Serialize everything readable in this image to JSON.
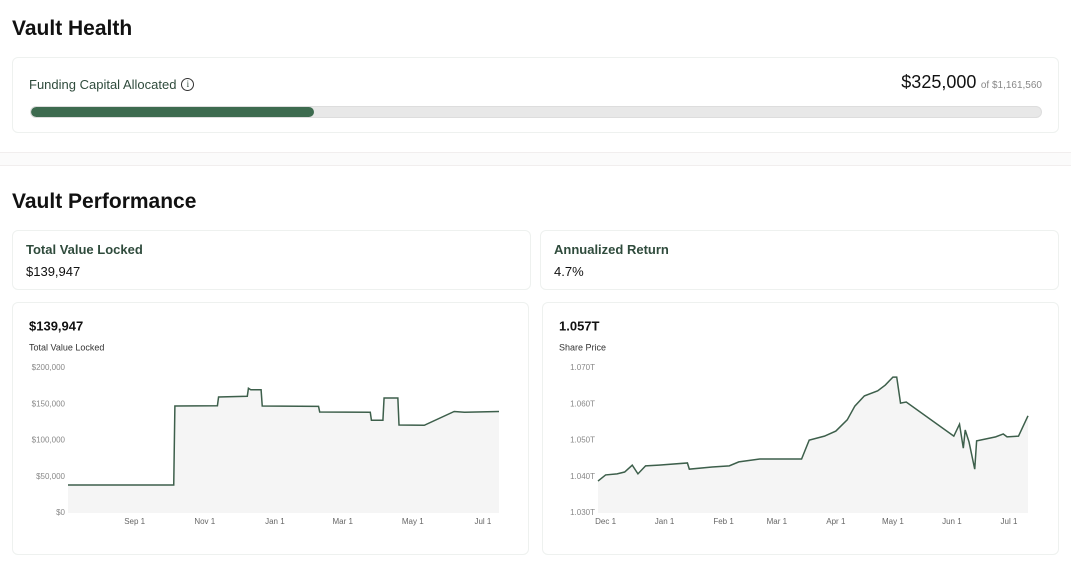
{
  "health": {
    "title": "Vault Health",
    "label": "Funding Capital Allocated",
    "amount_label": "$325,000",
    "amount": 325000,
    "total_label": "of $1,161,560",
    "total": 1161560
  },
  "performance": {
    "title": "Vault Performance",
    "stats": [
      {
        "label": "Total Value Locked",
        "value": "$139,947"
      },
      {
        "label": "Annualized Return",
        "value": "4.7%"
      }
    ]
  },
  "chart_data": [
    {
      "type": "line",
      "title": "$139,947",
      "subtitle": "Total Value Locked",
      "color": "#3d5f4b",
      "grid": false,
      "x": [
        -58,
        34,
        35,
        72,
        73,
        98,
        99,
        101,
        110,
        111,
        160,
        161,
        205,
        206,
        216,
        217,
        229,
        230,
        252,
        278,
        287,
        317
      ],
      "values": [
        38600,
        38600,
        147600,
        148000,
        160000,
        161000,
        172000,
        170000,
        170000,
        147600,
        147000,
        139300,
        139000,
        128000,
        128000,
        158600,
        158600,
        121400,
        121000,
        140000,
        139000,
        140000
      ],
      "xlim": [
        -58,
        317
      ],
      "xticks": [
        {
          "value": 0,
          "label": "Sep 1"
        },
        {
          "value": 61,
          "label": "Nov 1"
        },
        {
          "value": 122,
          "label": "Jan 1"
        },
        {
          "value": 181,
          "label": "Mar 1"
        },
        {
          "value": 242,
          "label": "May 1"
        },
        {
          "value": 303,
          "label": "Jul 1"
        }
      ],
      "ylim": [
        0,
        200000
      ],
      "yticks": [
        {
          "value": 0,
          "label": "$0"
        },
        {
          "value": 50000,
          "label": "$50,000"
        },
        {
          "value": 100000,
          "label": "$100,000"
        },
        {
          "value": 150000,
          "label": "$150,000"
        },
        {
          "value": 200000,
          "label": "$200,000"
        }
      ]
    },
    {
      "type": "line",
      "title": "1.057T",
      "subtitle": "Share Price",
      "color": "#3d5f4b",
      "grid": false,
      "x": [
        -4,
        0,
        6,
        10,
        14,
        17,
        21,
        28,
        43,
        44,
        56,
        65,
        70,
        81,
        103,
        107,
        115,
        121,
        127,
        131,
        136,
        143,
        147,
        151,
        153,
        155,
        158,
        183,
        186,
        188,
        189,
        191,
        194,
        195,
        205,
        209,
        211,
        217,
        222
      ],
      "values": [
        1.0388,
        1.0405,
        1.0408,
        1.0413,
        1.0432,
        1.0408,
        1.043,
        1.0432,
        1.0438,
        1.0421,
        1.0427,
        1.043,
        1.0441,
        1.0449,
        1.0449,
        1.0501,
        1.0512,
        1.0526,
        1.0557,
        1.0595,
        1.0623,
        1.0637,
        1.0653,
        1.0675,
        1.0675,
        1.0603,
        1.0606,
        1.0512,
        1.0545,
        1.0479,
        1.0529,
        1.0496,
        1.0421,
        1.0499,
        1.051,
        1.0518,
        1.051,
        1.0512,
        1.0568
      ],
      "xlim": [
        -4,
        222
      ],
      "xticks": [
        {
          "value": 0,
          "label": "Dec 1"
        },
        {
          "value": 31,
          "label": "Jan 1"
        },
        {
          "value": 62,
          "label": "Feb 1"
        },
        {
          "value": 90,
          "label": "Mar 1"
        },
        {
          "value": 121,
          "label": "Apr 1"
        },
        {
          "value": 151,
          "label": "May 1"
        },
        {
          "value": 182,
          "label": "Jun 1"
        },
        {
          "value": 212,
          "label": "Jul 1"
        }
      ],
      "ylim": [
        1.03,
        1.07
      ],
      "yticks": [
        {
          "value": 1.03,
          "label": "1.030T"
        },
        {
          "value": 1.04,
          "label": "1.040T"
        },
        {
          "value": 1.05,
          "label": "1.050T"
        },
        {
          "value": 1.06,
          "label": "1.060T"
        },
        {
          "value": 1.07,
          "label": "1.070T"
        }
      ]
    }
  ]
}
